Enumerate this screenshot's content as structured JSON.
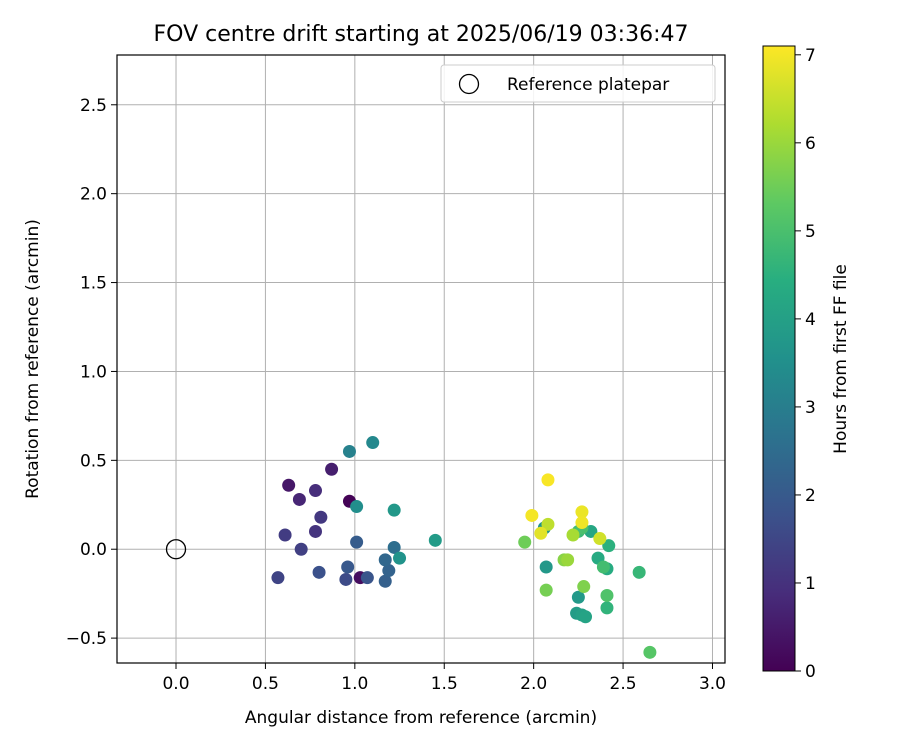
{
  "chart_data": {
    "type": "scatter",
    "title": "FOV centre drift starting at 2025/06/19 03:36:47",
    "xlabel": "Angular distance from reference (arcmin)",
    "ylabel": "Rotation from reference (arcmin)",
    "xlim": [
      -0.33,
      3.07
    ],
    "ylim": [
      -0.64,
      2.78
    ],
    "xticks": [
      0.0,
      0.5,
      1.0,
      1.5,
      2.0,
      2.5,
      3.0
    ],
    "xtick_labels": [
      "0.0",
      "0.5",
      "1.0",
      "1.5",
      "2.0",
      "2.5",
      "3.0"
    ],
    "yticks": [
      -0.5,
      0.0,
      0.5,
      1.0,
      1.5,
      2.0,
      2.5
    ],
    "ytick_labels": [
      "−0.5",
      "0.0",
      "0.5",
      "1.0",
      "1.5",
      "2.0",
      "2.5"
    ],
    "grid": true,
    "legend": {
      "position": "top-right",
      "entries": [
        "Reference platepar"
      ]
    },
    "reference_point": {
      "x": 0.0,
      "y": 0.0
    },
    "colorbar": {
      "label": "Hours from first FF file",
      "colormap": "viridis",
      "range": [
        0,
        7.1
      ],
      "ticks": [
        0,
        1,
        2,
        3,
        4,
        5,
        6,
        7
      ],
      "tick_labels": [
        "0",
        "1",
        "2",
        "3",
        "4",
        "5",
        "6",
        "7"
      ]
    },
    "points": [
      {
        "x": 0.97,
        "y": 0.27,
        "hours": 0.05
      },
      {
        "x": 1.03,
        "y": -0.16,
        "hours": 0.25
      },
      {
        "x": 0.63,
        "y": 0.36,
        "hours": 0.45
      },
      {
        "x": 0.87,
        "y": 0.45,
        "hours": 0.6
      },
      {
        "x": 0.69,
        "y": 0.28,
        "hours": 0.75
      },
      {
        "x": 0.78,
        "y": 0.33,
        "hours": 0.9
      },
      {
        "x": 0.78,
        "y": 0.1,
        "hours": 1.05
      },
      {
        "x": 0.81,
        "y": 0.18,
        "hours": 1.15
      },
      {
        "x": 0.61,
        "y": 0.08,
        "hours": 1.25
      },
      {
        "x": 0.7,
        "y": 0.0,
        "hours": 1.35
      },
      {
        "x": 0.57,
        "y": -0.16,
        "hours": 1.45
      },
      {
        "x": 0.95,
        "y": -0.17,
        "hours": 1.6
      },
      {
        "x": 0.8,
        "y": -0.13,
        "hours": 1.75
      },
      {
        "x": 1.07,
        "y": -0.16,
        "hours": 1.85
      },
      {
        "x": 0.96,
        "y": -0.1,
        "hours": 1.95
      },
      {
        "x": 1.01,
        "y": 0.04,
        "hours": 2.05
      },
      {
        "x": 1.17,
        "y": -0.18,
        "hours": 2.15
      },
      {
        "x": 1.19,
        "y": -0.12,
        "hours": 2.25
      },
      {
        "x": 1.17,
        "y": -0.06,
        "hours": 2.35
      },
      {
        "x": 1.22,
        "y": 0.01,
        "hours": 2.55
      },
      {
        "x": 0.97,
        "y": 0.55,
        "hours": 3.1
      },
      {
        "x": 1.1,
        "y": 0.6,
        "hours": 3.3
      },
      {
        "x": 1.01,
        "y": 0.24,
        "hours": 3.45
      },
      {
        "x": 1.25,
        "y": -0.05,
        "hours": 3.6
      },
      {
        "x": 1.22,
        "y": 0.22,
        "hours": 3.75
      },
      {
        "x": 1.45,
        "y": 0.05,
        "hours": 3.85
      },
      {
        "x": 2.06,
        "y": 0.12,
        "hours": 3.6
      },
      {
        "x": 2.07,
        "y": -0.1,
        "hours": 3.75
      },
      {
        "x": 2.25,
        "y": -0.27,
        "hours": 3.8
      },
      {
        "x": 2.24,
        "y": -0.36,
        "hours": 3.9
      },
      {
        "x": 2.27,
        "y": -0.37,
        "hours": 4.0
      },
      {
        "x": 2.29,
        "y": -0.38,
        "hours": 4.1
      },
      {
        "x": 2.32,
        "y": 0.1,
        "hours": 4.2
      },
      {
        "x": 2.36,
        "y": -0.05,
        "hours": 4.3
      },
      {
        "x": 2.41,
        "y": -0.11,
        "hours": 4.35
      },
      {
        "x": 2.42,
        "y": 0.02,
        "hours": 4.5
      },
      {
        "x": 2.41,
        "y": -0.33,
        "hours": 4.6
      },
      {
        "x": 2.59,
        "y": -0.13,
        "hours": 4.7
      },
      {
        "x": 2.25,
        "y": 0.1,
        "hours": 4.8
      },
      {
        "x": 2.39,
        "y": -0.1,
        "hours": 4.9
      },
      {
        "x": 2.27,
        "y": 0.12,
        "hours": 5.0
      },
      {
        "x": 2.41,
        "y": -0.26,
        "hours": 5.1
      },
      {
        "x": 2.65,
        "y": -0.58,
        "hours": 5.2
      },
      {
        "x": 1.95,
        "y": 0.04,
        "hours": 5.5
      },
      {
        "x": 2.07,
        "y": -0.23,
        "hours": 5.6
      },
      {
        "x": 2.28,
        "y": -0.21,
        "hours": 5.7
      },
      {
        "x": 2.17,
        "y": -0.06,
        "hours": 5.8
      },
      {
        "x": 2.19,
        "y": -0.06,
        "hours": 6.0
      },
      {
        "x": 2.22,
        "y": 0.08,
        "hours": 6.15
      },
      {
        "x": 2.08,
        "y": 0.14,
        "hours": 6.4
      },
      {
        "x": 2.37,
        "y": 0.06,
        "hours": 6.6
      },
      {
        "x": 2.04,
        "y": 0.09,
        "hours": 6.8
      },
      {
        "x": 2.27,
        "y": 0.21,
        "hours": 6.9
      },
      {
        "x": 2.27,
        "y": 0.15,
        "hours": 6.95
      },
      {
        "x": 1.99,
        "y": 0.19,
        "hours": 7.0
      },
      {
        "x": 2.08,
        "y": 0.39,
        "hours": 7.05
      }
    ]
  }
}
